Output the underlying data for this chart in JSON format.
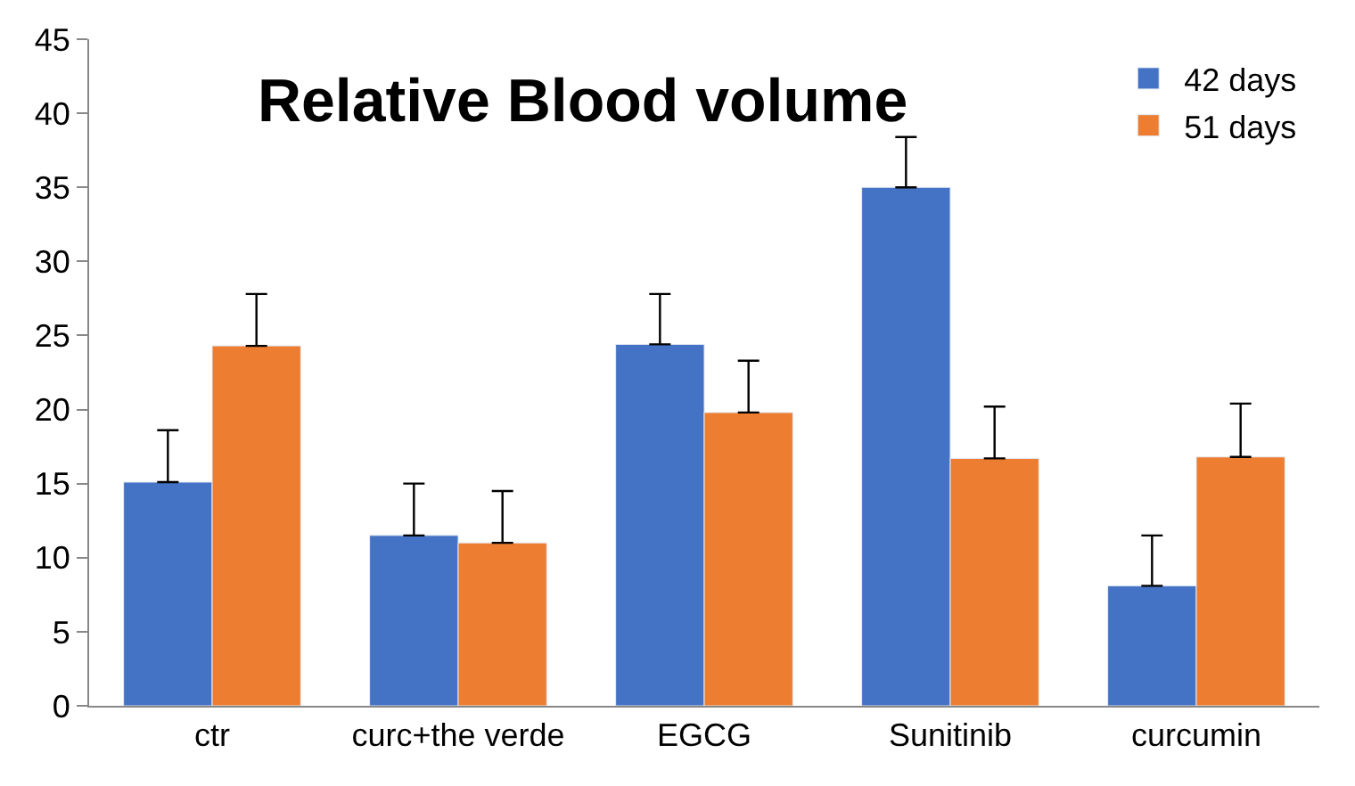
{
  "chart_data": {
    "type": "bar",
    "title": "Relative Blood volume",
    "categories": [
      "ctr",
      "curc+the verde",
      "EGCG",
      "Sunitinib",
      "curcumin"
    ],
    "series": [
      {
        "name": "42 days",
        "color": "#4472c4",
        "values": [
          15.1,
          11.5,
          24.4,
          35.0,
          8.1
        ],
        "errors": [
          [
            15.1,
            18.6
          ],
          [
            11.5,
            15.0
          ],
          [
            24.4,
            27.8
          ],
          [
            35.0,
            38.4
          ],
          [
            8.1,
            11.5
          ]
        ]
      },
      {
        "name": "51 days",
        "color": "#ed7d31",
        "values": [
          24.3,
          11.0,
          19.8,
          16.7,
          16.8
        ],
        "errors": [
          [
            24.3,
            27.8
          ],
          [
            11.0,
            14.5
          ],
          [
            19.8,
            23.3
          ],
          [
            16.7,
            20.2
          ],
          [
            16.8,
            20.4
          ]
        ]
      }
    ],
    "ylim": [
      0,
      45
    ],
    "yticks": [
      0,
      5,
      10,
      15,
      20,
      25,
      30,
      35,
      40,
      45
    ],
    "legend": "top right"
  }
}
